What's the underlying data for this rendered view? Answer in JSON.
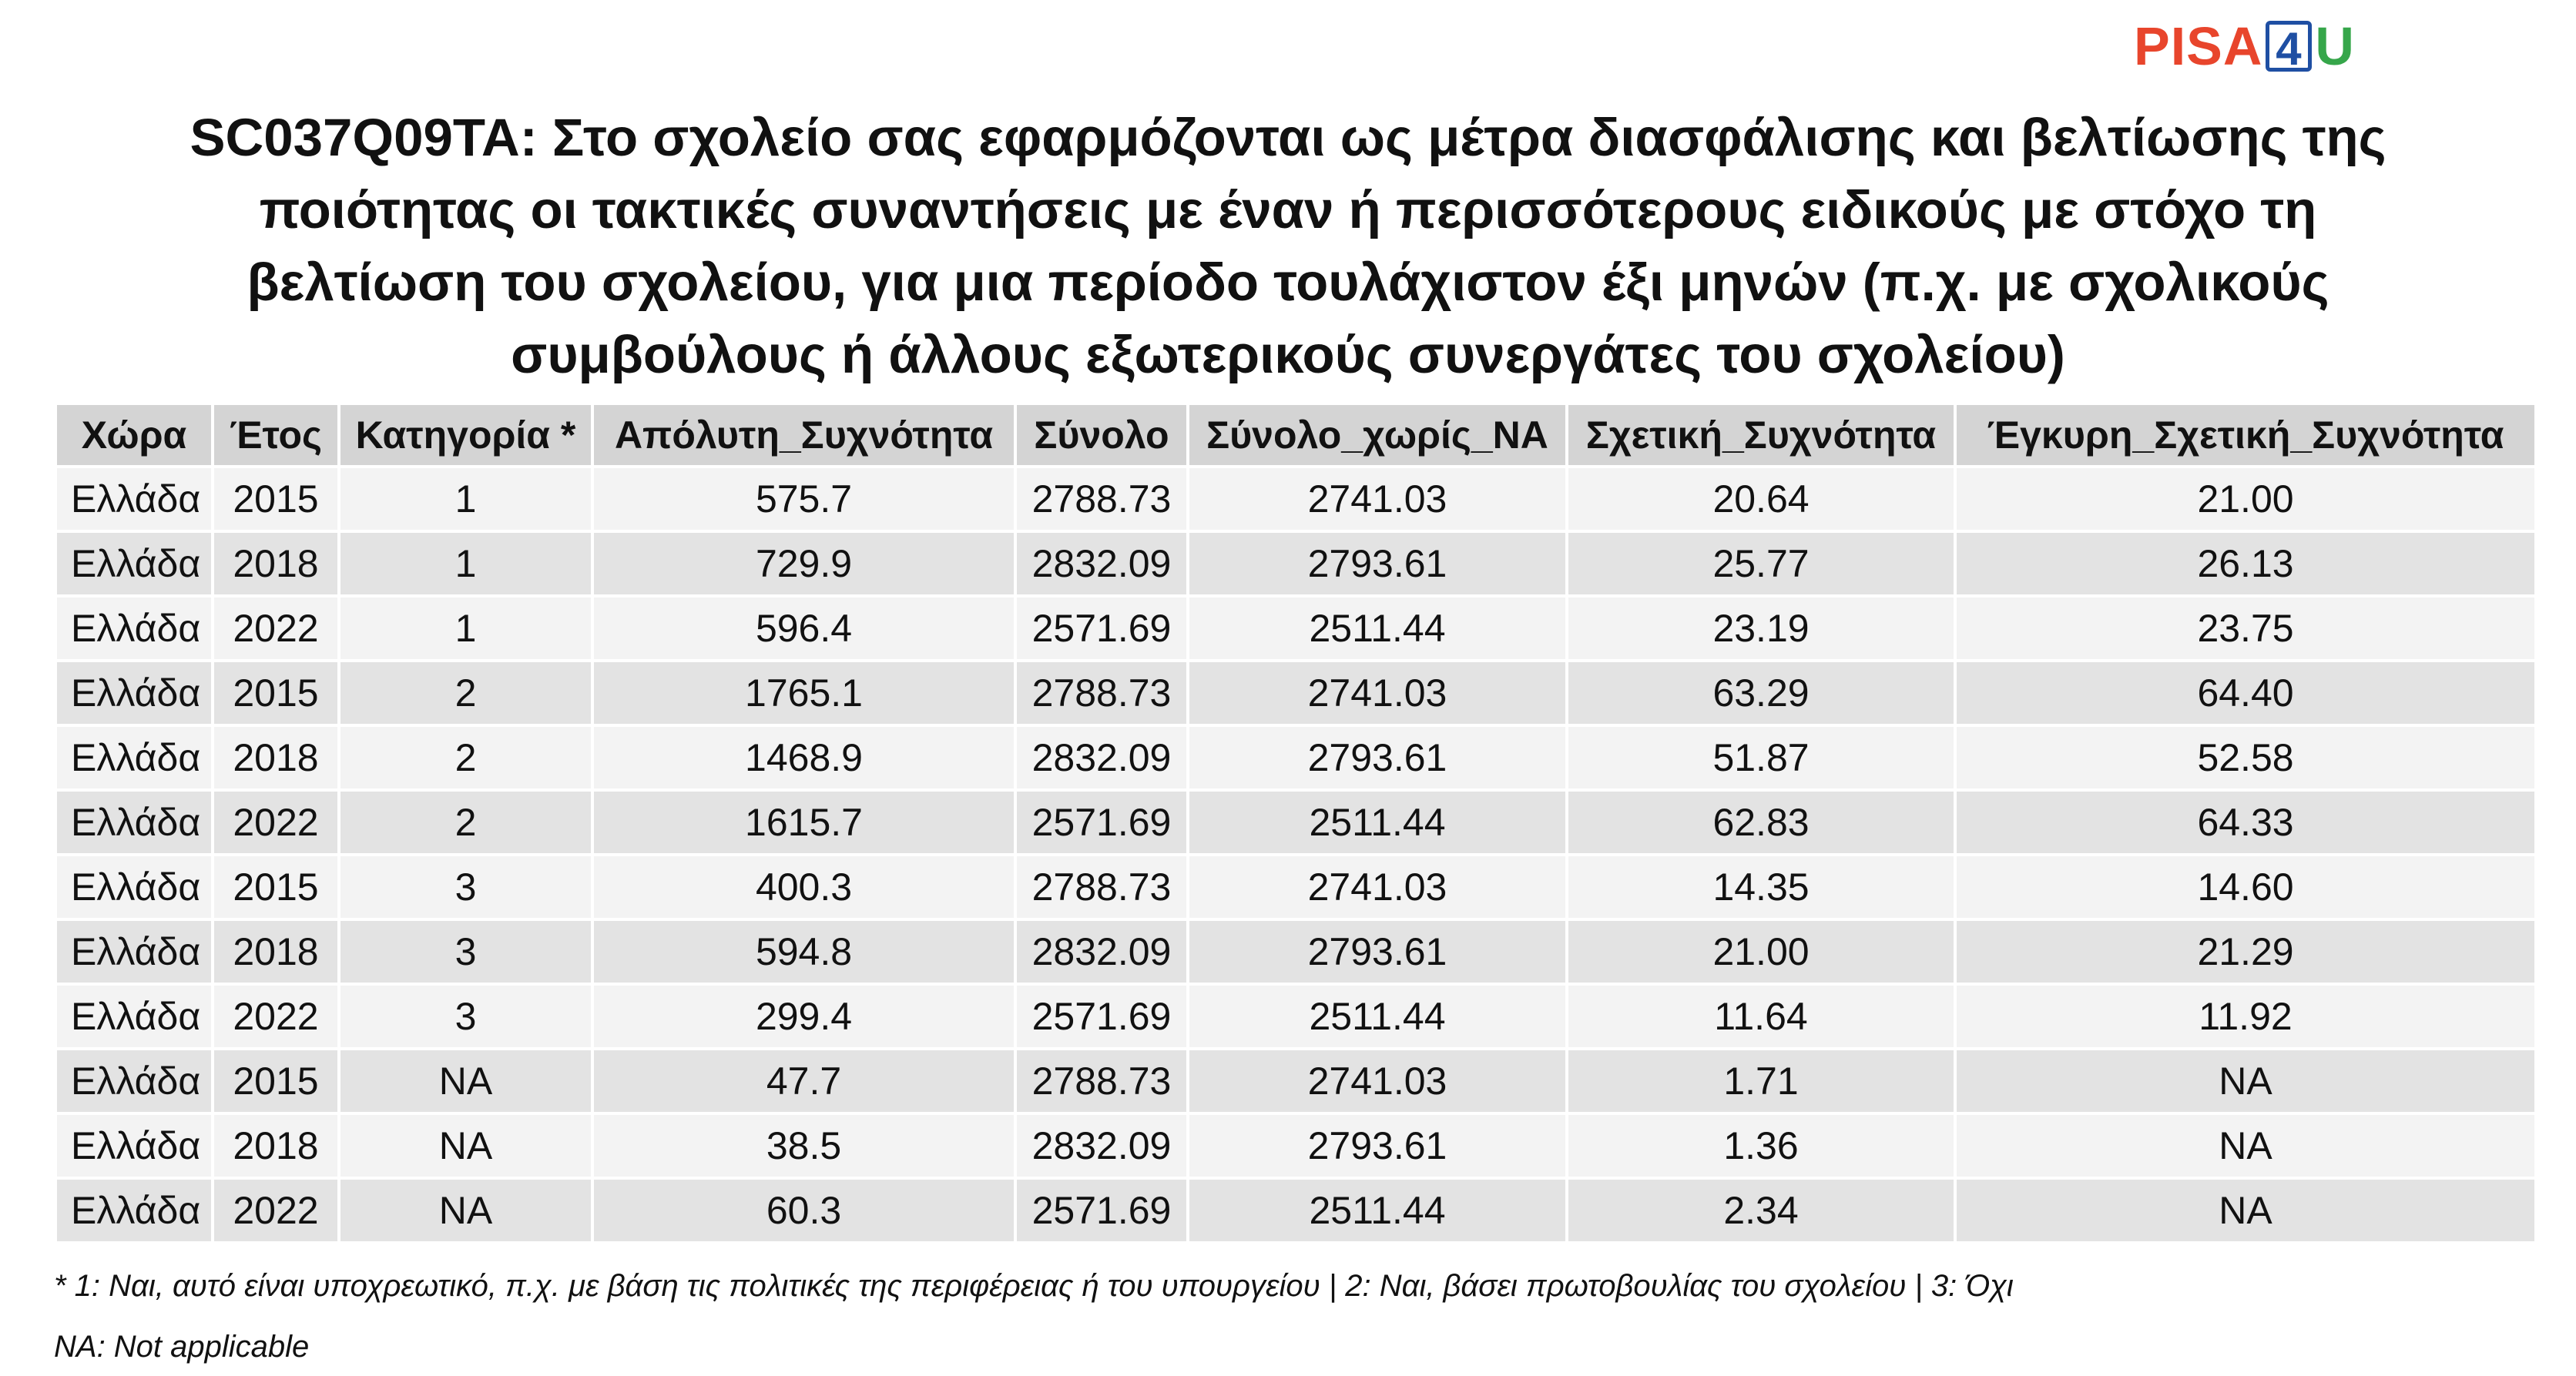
{
  "logo": {
    "pisa": "PISA",
    "four": "4",
    "u": "U"
  },
  "title": "SC037Q09TA: Στο σχολείο σας εφαρμόζονται ως μέτρα διασφάλισης και βελτίωσης της\nποιότητας οι τακτικές συναντήσεις με έναν ή περισσότερους ειδικούς με στόχο τη\nβελτίωση του σχολείου, για μια περίοδο τουλάχιστον έξι μηνών (π.χ. με σχολικούς\nσυμβούλους ή άλλους εξωτερικούς συνεργάτες του σχολείου)",
  "table": {
    "headers": [
      "Χώρα",
      "Έτος",
      "Κατηγορία *",
      "Απόλυτη_Συχνότητα",
      "Σύνολο",
      "Σύνολο_χωρίς_NA",
      "Σχετική_Συχνότητα",
      "Έγκυρη_Σχετική_Συχνότητα"
    ],
    "rows": [
      [
        "Ελλάδα",
        "2015",
        "1",
        "575.7",
        "2788.73",
        "2741.03",
        "20.64",
        "21.00"
      ],
      [
        "Ελλάδα",
        "2018",
        "1",
        "729.9",
        "2832.09",
        "2793.61",
        "25.77",
        "26.13"
      ],
      [
        "Ελλάδα",
        "2022",
        "1",
        "596.4",
        "2571.69",
        "2511.44",
        "23.19",
        "23.75"
      ],
      [
        "Ελλάδα",
        "2015",
        "2",
        "1765.1",
        "2788.73",
        "2741.03",
        "63.29",
        "64.40"
      ],
      [
        "Ελλάδα",
        "2018",
        "2",
        "1468.9",
        "2832.09",
        "2793.61",
        "51.87",
        "52.58"
      ],
      [
        "Ελλάδα",
        "2022",
        "2",
        "1615.7",
        "2571.69",
        "2511.44",
        "62.83",
        "64.33"
      ],
      [
        "Ελλάδα",
        "2015",
        "3",
        "400.3",
        "2788.73",
        "2741.03",
        "14.35",
        "14.60"
      ],
      [
        "Ελλάδα",
        "2018",
        "3",
        "594.8",
        "2832.09",
        "2793.61",
        "21.00",
        "21.29"
      ],
      [
        "Ελλάδα",
        "2022",
        "3",
        "299.4",
        "2571.69",
        "2511.44",
        "11.64",
        "11.92"
      ],
      [
        "Ελλάδα",
        "2015",
        "NA",
        "47.7",
        "2788.73",
        "2741.03",
        "1.71",
        "NA"
      ],
      [
        "Ελλάδα",
        "2018",
        "NA",
        "38.5",
        "2832.09",
        "2793.61",
        "1.36",
        "NA"
      ],
      [
        "Ελλάδα",
        "2022",
        "NA",
        "60.3",
        "2571.69",
        "2511.44",
        "2.34",
        "NA"
      ]
    ]
  },
  "footnotes": {
    "categories": "* 1: Ναι, αυτό είναι υποχρεωτικό, π.χ. με βάση τις πολιτικές της περιφέρειας ή του υπουργείου | 2: Ναι, βάσει πρωτοβουλίας του σχολείου | 3: Όχι",
    "na": "NA: Not applicable"
  }
}
